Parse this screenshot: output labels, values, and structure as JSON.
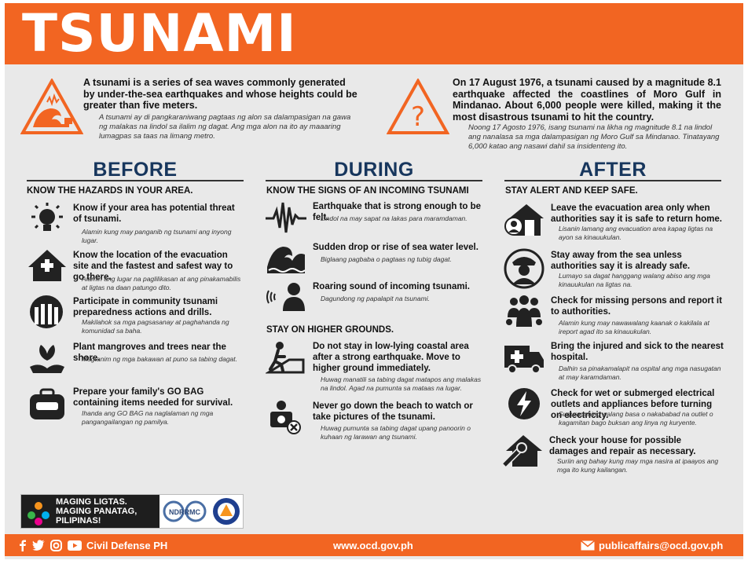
{
  "header": {
    "title": "TSUNAMI"
  },
  "intro": {
    "left_en": "A tsunami is a series of sea waves commonly generated by under-the-sea earthquakes and whose heights could be greater than five meters.",
    "left_tl": "A tsunami ay di pangkaraniwang pagtaas ng alon sa dalampasigan na gawa ng malakas na lindol sa ilalim ng dagat. Ang mga alon na ito ay maaaring lumagpas sa taas na limang metro.",
    "right_en": "On 17 August 1976, a tsunami caused by a magnitude 8.1 earthquake affected the coastlines of Moro Gulf in Mindanao. About 6,000 people were killed, making it the most disastrous tsunami to hit the country.",
    "right_tl": "Noong 17 Agosto 1976, isang tsunami na likha ng magnitude 8.1 na lindol ang nanalasa sa mga dalampasigan ng Moro Gulf sa Mindanao. Tinatayang 6,000 katao ang nasawi dahil sa insidenteng ito."
  },
  "before": {
    "title": "BEFORE",
    "heading": "KNOW THE HAZARDS IN YOUR AREA.",
    "items": [
      {
        "en": "Know if your area has potential threat of tsunami.",
        "tl": "Alamin kung may panganib ng tsunami ang inyong lugar.",
        "icon": "bulb-icon"
      },
      {
        "en": "Know the location of the evacuation site and the fastest and safest way to go there.",
        "tl": "Alamin ang lugar na paglilikasan at ang pinakamabilis at ligtas na daan patungo dito.",
        "icon": "evacuation-house-icon"
      },
      {
        "en": "Participate in community tsunami preparedness actions and drills.",
        "tl": "Makilahok sa mga pagsasanay at paghahanda ng komunidad sa baha.",
        "icon": "raised-hands-icon"
      },
      {
        "en": "Plant mangroves and trees near the shore.",
        "tl": "Magtanim ng mga bakawan at puno sa tabing dagat.",
        "icon": "plant-hand-icon"
      },
      {
        "en": "Prepare your family's GO BAG containing items needed for survival.",
        "tl": "Ihanda ang GO BAG na naglalaman ng mga pangangailangan ng pamilya.",
        "icon": "go-bag-icon"
      }
    ]
  },
  "during": {
    "title": "DURING",
    "heading": "KNOW THE SIGNS OF AN INCOMING TSUNAMI",
    "items": [
      {
        "en": "Earthquake that is strong enough to be felt.",
        "tl": "Lindol na may sapat na lakas para maramdaman.",
        "icon": "seismograph-icon"
      },
      {
        "en": "Sudden drop or rise of sea water level.",
        "tl": "Biglaang pagbaba o pagtaas ng tubig dagat.",
        "icon": "wave-icon"
      },
      {
        "en": "Roaring sound of incoming tsunami.",
        "tl": "Dagundong ng papalapit na tsunami.",
        "icon": "listening-person-icon"
      }
    ],
    "heading2": "STAY ON HIGHER GROUNDS.",
    "items2": [
      {
        "en": "Do not stay in low-lying coastal area after a strong earthquake. Move to higher ground immediately.",
        "tl": "Huwag manatili sa tabing dagat matapos ang malakas na lindol. Agad na pumunta sa mataas na lugar.",
        "icon": "climbing-person-icon"
      },
      {
        "en": "Never go down the beach to watch or take pictures of the tsunami.",
        "tl": "Huwag pumunta sa tabing dagat upang panoorin o kuhaan ng larawan ang tsunami.",
        "icon": "no-camera-icon"
      }
    ]
  },
  "after": {
    "title": "AFTER",
    "heading": "STAY ALERT AND KEEP SAFE.",
    "items": [
      {
        "en": "Leave the evacuation area only when authorities say it is safe to return home.",
        "tl": "Lisanin lamang ang evacuation area kapag ligtas na ayon sa kinauukulan.",
        "icon": "return-home-icon"
      },
      {
        "en": "Stay away from the sea unless authorities say it is already safe.",
        "tl": "Lumayo sa dagat hanggang walang abiso ang mga kinauukulan na ligtas na.",
        "icon": "authority-icon"
      },
      {
        "en": "Check for missing persons and report it to authorities.",
        "tl": "Alamin kung may nawawalang kaanak o kakilala at ireport agad ito sa kinauukulan.",
        "icon": "group-people-icon"
      },
      {
        "en": "Bring the injured and sick to the nearest hospital.",
        "tl": "Dalhin sa pinakamalapit na ospital ang mga nasugatan at may karamdaman.",
        "icon": "ambulance-icon"
      },
      {
        "en": "Check for wet or submerged electrical outlets and appliances before turning on electricity.",
        "tl": "Suguraduhing walang basa o nakababad na outlet o kagamitan bago buksan ang linya ng kuryente.",
        "icon": "electric-icon"
      },
      {
        "en": "Check your house for possible damages and repair as necessary.",
        "tl": "Suriin ang bahay kung may mga nasira at ipaayos ang mga ito kung kailangan.",
        "icon": "house-repair-icon"
      }
    ]
  },
  "logos": {
    "line1": "MAGING LIGTAS.",
    "line2": "MAGING PANATAG,",
    "line3": "PILIPINAS!",
    "ndrrmc": "NDRRMC"
  },
  "footer": {
    "brand": "Civil Defense PH",
    "website": "www.ocd.gov.ph",
    "email": "publicaffairs@ocd.gov.ph"
  },
  "colors": {
    "orange": "#f26522",
    "navy": "#17365d",
    "background": "#e9e9e9",
    "icon": "#222222"
  }
}
